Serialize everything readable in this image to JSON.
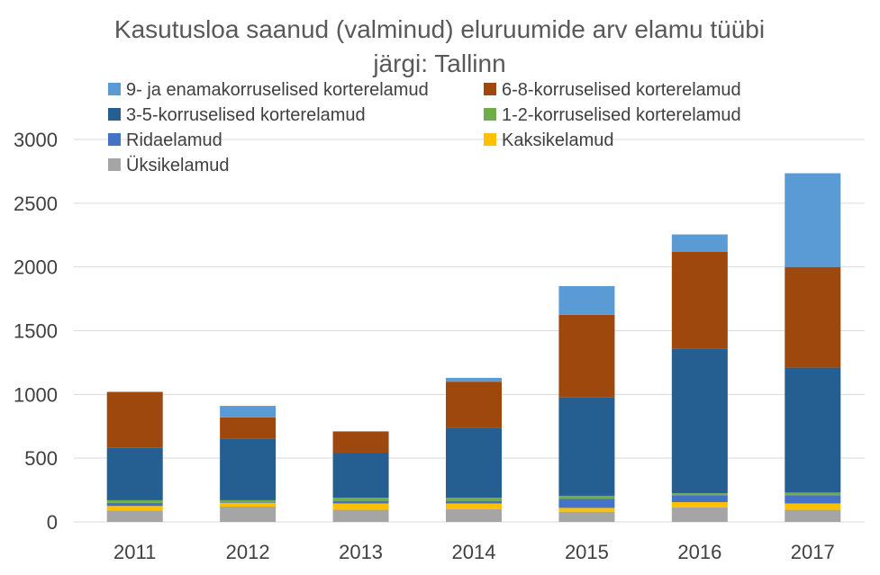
{
  "chart_data": {
    "type": "bar",
    "stacked": true,
    "title_lines": [
      "Kasutusloa saanud (valminud) eluruumide arv elamu tüübi",
      "järgi: Tallinn"
    ],
    "xlabel": "",
    "ylabel": "",
    "categories": [
      "2011",
      "2012",
      "2013",
      "2014",
      "2015",
      "2016",
      "2017"
    ],
    "ylim": [
      0,
      3000
    ],
    "yticks": [
      0,
      500,
      1000,
      1500,
      2000,
      2500,
      3000
    ],
    "grid": true,
    "legend_position": "top",
    "series": [
      {
        "name": "Üksikelamud",
        "color": "#a5a5a5",
        "values": [
          90,
          120,
          95,
          100,
          80,
          115,
          95
        ]
      },
      {
        "name": "Kaksikelamud",
        "color": "#ffc000",
        "values": [
          35,
          30,
          50,
          45,
          30,
          40,
          50
        ]
      },
      {
        "name": "Ridaelamud",
        "color": "#4472c4",
        "values": [
          25,
          5,
          20,
          20,
          70,
          55,
          65
        ]
      },
      {
        "name": "1-2-korruselised korterelamud",
        "color": "#70ad47",
        "values": [
          20,
          15,
          25,
          25,
          25,
          15,
          20
        ]
      },
      {
        "name": "3-5-korruselised korterelamud",
        "color": "#255e91",
        "values": [
          410,
          480,
          350,
          550,
          770,
          1135,
          980
        ]
      },
      {
        "name": "6-8-korruselised korterelamud",
        "color": "#9e480e",
        "values": [
          440,
          170,
          170,
          360,
          650,
          760,
          790
        ]
      },
      {
        "name": "9- ja enamakorruselised korterelamud",
        "color": "#5b9bd5",
        "values": [
          0,
          90,
          0,
          30,
          225,
          135,
          735
        ]
      }
    ],
    "legend_order": [
      "9- ja enamakorruselised korterelamud",
      "6-8-korruselised korterelamud",
      "3-5-korruselised korterelamud",
      "1-2-korruselised korterelamud",
      "Ridaelamud",
      "Kaksikelamud",
      "Üksikelamud"
    ]
  }
}
